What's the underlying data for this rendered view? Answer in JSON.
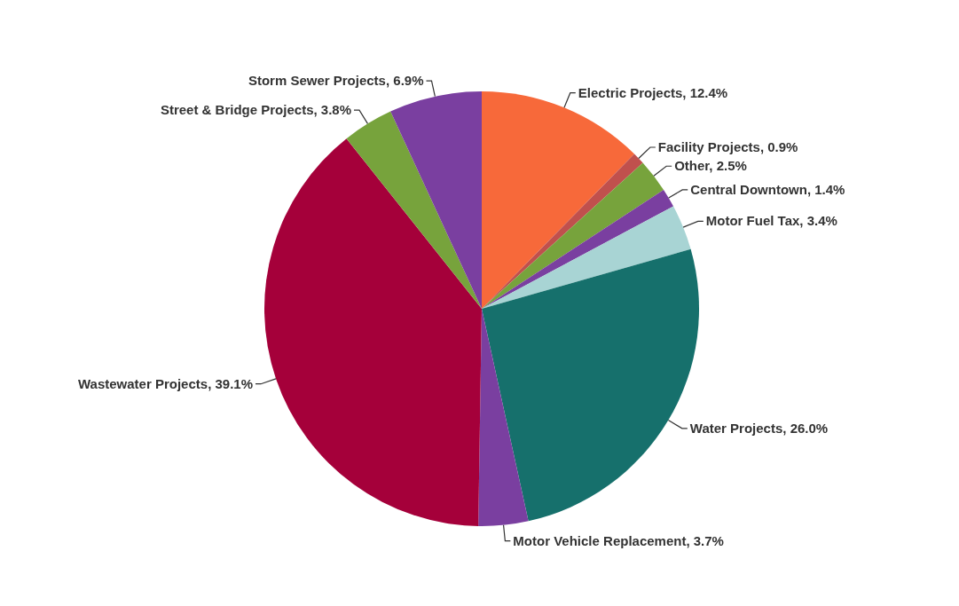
{
  "chart_data": {
    "type": "pie",
    "categories": [
      "Electric Projects",
      "Facility Projects",
      "Other",
      "Central Downtown",
      "Motor Fuel Tax",
      "Water Projects",
      "Motor Vehicle Replacement",
      "Wastewater Projects",
      "Street & Bridge Projects",
      "Storm Sewer Projects"
    ],
    "values": [
      12.4,
      0.9,
      2.5,
      1.4,
      3.4,
      26.0,
      3.7,
      39.1,
      3.8,
      6.9
    ],
    "value_labels": [
      "12.4%",
      "0.9%",
      "2.5%",
      "1.4%",
      "3.4%",
      "26.0%",
      "3.7%",
      "39.1%",
      "3.8%",
      "6.9%"
    ],
    "colors": [
      "#f7693a",
      "#c0504d",
      "#77a33c",
      "#7a3fa0",
      "#a8d4d4",
      "#16706c",
      "#7a3fa0",
      "#a5003a",
      "#77a33c",
      "#7a3fa0"
    ],
    "legend": false
  }
}
